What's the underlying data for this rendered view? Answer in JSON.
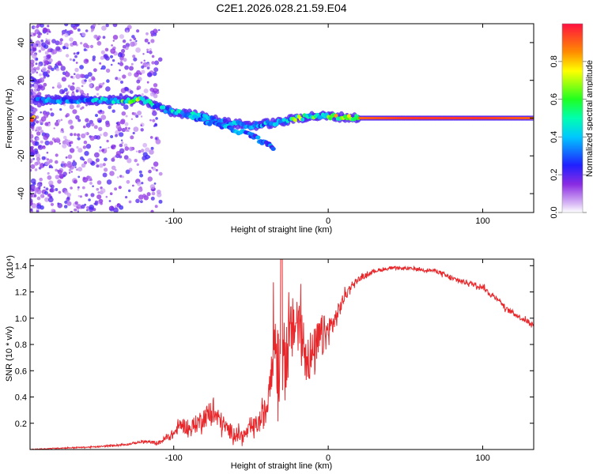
{
  "title": "C2E1.2026.028.21.59.E04",
  "chart_data": [
    {
      "type": "heatmap",
      "xlabel": "Height of straight line (km)",
      "ylabel": "Frequency (Hz)",
      "xlim": [
        -193,
        133
      ],
      "ylim": [
        -50,
        50
      ],
      "x_ticks": [
        -100,
        0,
        100
      ],
      "y_ticks": [
        -40,
        -20,
        0,
        20,
        40
      ],
      "colorbar": {
        "label": "Normalized spectral amplitude",
        "range": [
          0.0,
          1.0
        ],
        "ticks": [
          0.0,
          0.2,
          0.4,
          0.6,
          0.8
        ]
      },
      "ridge": [
        {
          "x": -190,
          "f": 9.5,
          "a": 0.35
        },
        {
          "x": -180,
          "f": 9.5,
          "a": 0.4
        },
        {
          "x": -170,
          "f": 9.5,
          "a": 0.35
        },
        {
          "x": -160,
          "f": 9.5,
          "a": 0.4
        },
        {
          "x": -150,
          "f": 9.5,
          "a": 0.45
        },
        {
          "x": -140,
          "f": 9.5,
          "a": 0.5
        },
        {
          "x": -130,
          "f": 9.5,
          "a": 0.6
        },
        {
          "x": -120,
          "f": 9.5,
          "a": 0.65
        },
        {
          "x": -110,
          "f": 6,
          "a": 0.4
        },
        {
          "x": -100,
          "f": 3,
          "a": 0.5
        },
        {
          "x": -90,
          "f": 2,
          "a": 0.45
        },
        {
          "x": -80,
          "f": 1,
          "a": 0.45
        },
        {
          "x": -70,
          "f": -2,
          "a": 0.35
        },
        {
          "x": -60,
          "f": -3,
          "a": 0.4
        },
        {
          "x": -50,
          "f": -4,
          "a": 0.4
        },
        {
          "x": -40,
          "f": -3,
          "a": 0.45
        },
        {
          "x": -30,
          "f": -2,
          "a": 0.35
        },
        {
          "x": -20,
          "f": 0,
          "a": 0.7
        },
        {
          "x": -10,
          "f": 1,
          "a": 0.6
        },
        {
          "x": 0,
          "f": 1,
          "a": 0.7
        },
        {
          "x": 10,
          "f": 0.5,
          "a": 0.75
        },
        {
          "x": 20,
          "f": 0,
          "a": 0.9
        },
        {
          "x": 50,
          "f": 0,
          "a": 0.95
        },
        {
          "x": 100,
          "f": 0,
          "a": 0.95
        },
        {
          "x": 133,
          "f": 0,
          "a": 0.9
        }
      ],
      "branch": [
        {
          "x": -90,
          "f": 1
        },
        {
          "x": -70,
          "f": -4
        },
        {
          "x": -50,
          "f": -9
        },
        {
          "x": -35,
          "f": -16
        }
      ]
    },
    {
      "type": "line",
      "xlabel": "Height of straight line (km)",
      "ylabel": "SNR (10 * v/v)",
      "y_exponent": "(x10⁴)",
      "xlim": [
        -193,
        133
      ],
      "ylim": [
        0,
        1.45
      ],
      "x_ticks": [
        -100,
        0,
        100
      ],
      "y_ticks": [
        0.2,
        0.4,
        0.6,
        0.8,
        1.0,
        1.2,
        1.4
      ],
      "series": [
        {
          "name": "SNR",
          "color": "#e8272b",
          "x": [
            -193,
            -175,
            -150,
            -130,
            -120,
            -110,
            -100,
            -95,
            -90,
            -80,
            -75,
            -70,
            -65,
            -60,
            -55,
            -50,
            -45,
            -40,
            -35,
            -32,
            -30,
            -28,
            -25,
            -20,
            -15,
            -10,
            -5,
            0,
            5,
            10,
            15,
            20,
            30,
            40,
            50,
            60,
            70,
            75,
            80,
            90,
            100,
            105,
            110,
            115,
            120,
            125,
            130,
            133
          ],
          "values": [
            0.0,
            0.01,
            0.02,
            0.04,
            0.06,
            0.05,
            0.12,
            0.2,
            0.15,
            0.25,
            0.28,
            0.22,
            0.15,
            0.12,
            0.1,
            0.16,
            0.2,
            0.3,
            0.9,
            0.65,
            0.7,
            0.68,
            0.85,
            1.0,
            0.75,
            0.7,
            0.85,
            0.9,
            1.0,
            1.15,
            1.25,
            1.3,
            1.36,
            1.38,
            1.38,
            1.37,
            1.36,
            1.33,
            1.3,
            1.27,
            1.24,
            1.18,
            1.15,
            1.07,
            1.04,
            1.0,
            0.97,
            0.95
          ],
          "noise": [
            0.003,
            0.004,
            0.005,
            0.008,
            0.01,
            0.015,
            0.04,
            0.05,
            0.06,
            0.08,
            0.1,
            0.08,
            0.06,
            0.06,
            0.05,
            0.06,
            0.08,
            0.12,
            0.3,
            0.35,
            0.35,
            0.3,
            0.25,
            0.25,
            0.22,
            0.2,
            0.18,
            0.12,
            0.08,
            0.05,
            0.03,
            0.02,
            0.015,
            0.012,
            0.012,
            0.012,
            0.015,
            0.02,
            0.02,
            0.02,
            0.02,
            0.02,
            0.02,
            0.02,
            0.02,
            0.02,
            0.02,
            0.02
          ]
        }
      ]
    }
  ]
}
